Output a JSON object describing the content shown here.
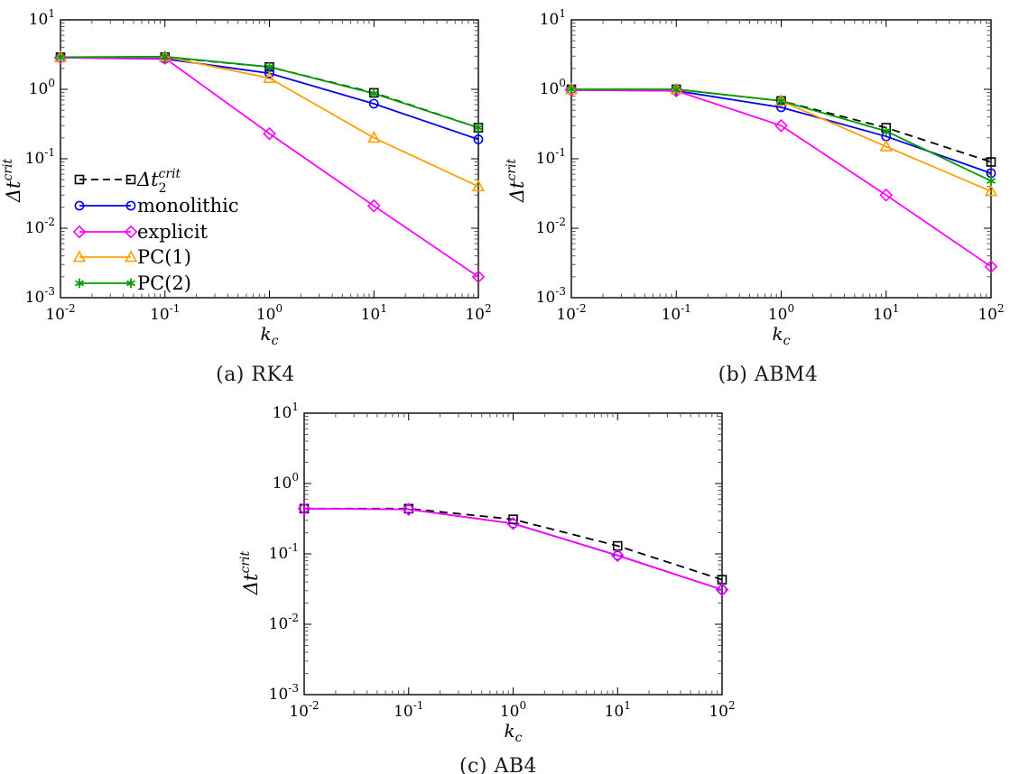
{
  "figure": {
    "description": "Critical time step versus coupling stiffness for three time integration schemes",
    "background": "#ffffff",
    "axis_color": "#000000"
  },
  "labels": {
    "xlabel": {
      "base": "k",
      "sub": "c"
    },
    "ylabel": {
      "base": "Δt",
      "sup": "crit"
    }
  },
  "series_styles": {
    "dt2crit": {
      "color": "#000000",
      "marker": "square",
      "line": "dashed",
      "legend_label": {
        "base": "Δt",
        "sub": "2",
        "sup": "crit",
        "italic": true
      }
    },
    "monolithic": {
      "color": "#0000ee",
      "marker": "circle",
      "line": "solid",
      "legend_label": {
        "base": "monolithic"
      }
    },
    "explicit": {
      "color": "#ff00ff",
      "marker": "diamond",
      "line": "solid",
      "legend_label": {
        "base": "explicit"
      }
    },
    "pc1": {
      "color": "#ffa000",
      "marker": "triangle-up",
      "line": "solid",
      "legend_label": {
        "base": "PC(1)"
      }
    },
    "pc2": {
      "color": "#009c00",
      "marker": "asterisk",
      "line": "solid",
      "legend_label": {
        "base": "PC(2)"
      }
    }
  },
  "legend": {
    "shown_on": "a",
    "items": [
      "dt2crit",
      "monolithic",
      "explicit",
      "pc1",
      "pc2"
    ]
  },
  "chart_data": [
    {
      "id": "a",
      "caption": "(a)  RK4",
      "type": "line",
      "x_scale": "log",
      "y_scale": "log",
      "xlabel": "k_c",
      "ylabel": "Δt^crit",
      "x": [
        0.01,
        0.1,
        1,
        10,
        100
      ],
      "xlim": [
        0.01,
        100
      ],
      "ylim": [
        0.001,
        10
      ],
      "xticks_exponents": [
        -2,
        -1,
        0,
        1,
        2
      ],
      "yticks_exponents": [
        1,
        0,
        -1,
        -2,
        -3
      ],
      "show_legend": true,
      "series": [
        {
          "key": "dt2crit",
          "name": "Δt_2^crit",
          "values": [
            2.9,
            2.9,
            2.1,
            0.89,
            0.28
          ]
        },
        {
          "key": "monolithic",
          "name": "monolithic",
          "values": [
            2.85,
            2.75,
            1.7,
            0.62,
            0.19
          ]
        },
        {
          "key": "explicit",
          "name": "explicit",
          "values": [
            2.85,
            2.8,
            0.23,
            0.021,
            0.002
          ]
        },
        {
          "key": "pc1",
          "name": "PC(1)",
          "values": [
            2.9,
            2.95,
            1.45,
            0.2,
            0.04
          ]
        },
        {
          "key": "pc2",
          "name": "PC(2)",
          "values": [
            2.9,
            2.95,
            2.1,
            0.87,
            0.28
          ]
        }
      ]
    },
    {
      "id": "b",
      "caption": "(b)  ABM4",
      "type": "line",
      "x_scale": "log",
      "y_scale": "log",
      "xlabel": "k_c",
      "ylabel": "Δt^crit",
      "x": [
        0.01,
        0.1,
        1,
        10,
        100
      ],
      "xlim": [
        0.01,
        100
      ],
      "ylim": [
        0.001,
        10
      ],
      "xticks_exponents": [
        -2,
        -1,
        0,
        1,
        2
      ],
      "yticks_exponents": [
        1,
        0,
        -1,
        -2,
        -3
      ],
      "show_legend": false,
      "series": [
        {
          "key": "dt2crit",
          "name": "Δt_2^crit",
          "values": [
            1.0,
            1.0,
            0.68,
            0.28,
            0.09
          ]
        },
        {
          "key": "monolithic",
          "name": "monolithic",
          "values": [
            0.98,
            0.95,
            0.55,
            0.21,
            0.062
          ]
        },
        {
          "key": "explicit",
          "name": "explicit",
          "values": [
            0.98,
            0.95,
            0.3,
            0.03,
            0.0028
          ]
        },
        {
          "key": "pc1",
          "name": "PC(1)",
          "values": [
            1.0,
            1.0,
            0.68,
            0.15,
            0.034
          ]
        },
        {
          "key": "pc2",
          "name": "PC(2)",
          "values": [
            1.0,
            1.0,
            0.68,
            0.25,
            0.048
          ]
        }
      ]
    },
    {
      "id": "c",
      "caption": "(c)  AB4",
      "type": "line",
      "x_scale": "log",
      "y_scale": "log",
      "xlabel": "k_c",
      "ylabel": "Δt^crit",
      "x": [
        0.01,
        0.1,
        1,
        10,
        100
      ],
      "xlim": [
        0.01,
        100
      ],
      "ylim": [
        0.001,
        10
      ],
      "xticks_exponents": [
        -2,
        -1,
        0,
        1,
        2
      ],
      "yticks_exponents": [
        1,
        0,
        -1,
        -2,
        -3
      ],
      "show_legend": false,
      "series": [
        {
          "key": "dt2crit",
          "name": "Δt_2^crit",
          "values": [
            0.44,
            0.44,
            0.31,
            0.13,
            0.043
          ]
        },
        {
          "key": "monolithic",
          "name": "monolithic",
          "values": [
            0.44,
            0.43,
            0.27,
            0.095,
            0.031
          ]
        },
        {
          "key": "explicit",
          "name": "explicit",
          "values": [
            0.44,
            0.43,
            0.27,
            0.095,
            0.031
          ]
        }
      ]
    }
  ]
}
